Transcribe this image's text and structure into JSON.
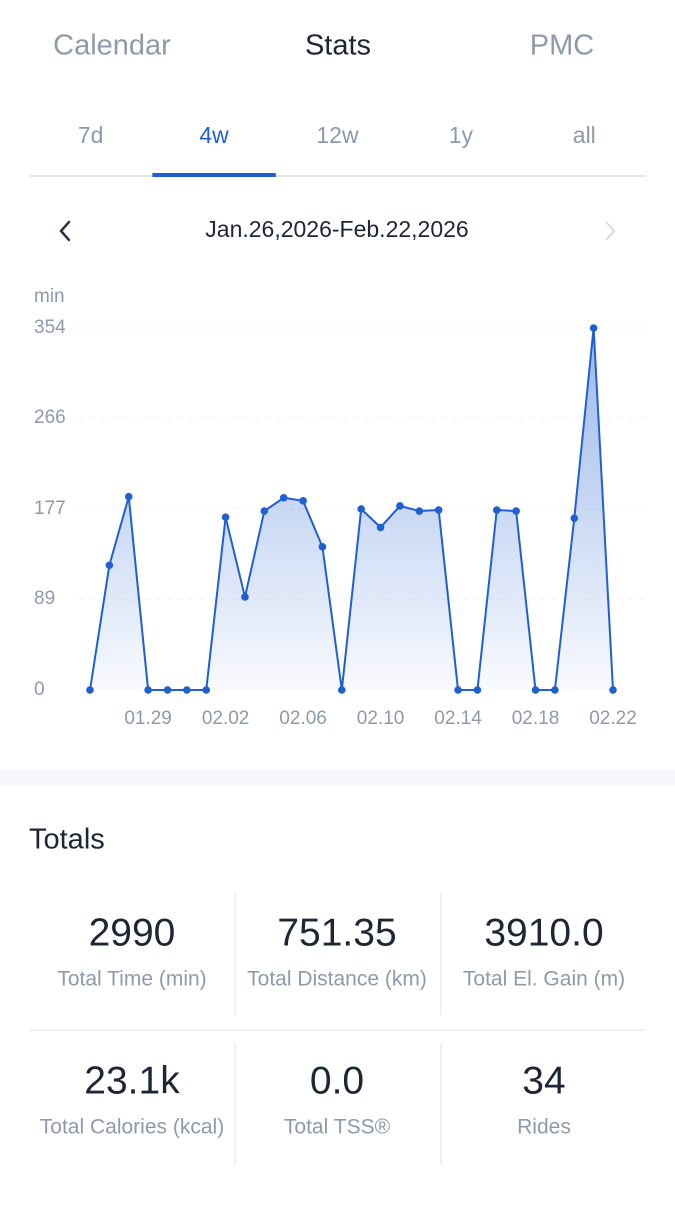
{
  "tabs": [
    "Calendar",
    "Stats",
    "PMC"
  ],
  "active_tab": 1,
  "range_tabs": [
    "7d",
    "4w",
    "12w",
    "1y",
    "all"
  ],
  "active_range": 1,
  "date_range": "Jan.26,2026-Feb.22,2026",
  "chart_data": {
    "type": "line",
    "y_label": "min",
    "categories": [
      null,
      null,
      null,
      "01.29",
      null,
      null,
      null,
      "02.02",
      null,
      null,
      null,
      "02.06",
      null,
      null,
      null,
      "02.10",
      null,
      null,
      null,
      "02.14",
      null,
      null,
      null,
      "02.18",
      null,
      null,
      null,
      "02.22"
    ],
    "values": [
      0,
      122,
      189,
      0,
      0,
      0,
      0,
      169,
      91,
      175,
      188,
      185,
      140,
      0,
      177,
      159,
      180,
      175,
      176,
      0,
      0,
      176,
      175,
      0,
      0,
      168,
      354,
      0
    ],
    "ylim": [
      0,
      354
    ],
    "yticks": [
      0,
      89,
      177,
      266,
      354
    ],
    "color": "#1f5fd1",
    "grid": true
  },
  "totals": {
    "title": "Totals",
    "items": [
      {
        "value": "2990",
        "label": "Total Time (min)"
      },
      {
        "value": "751.35",
        "label": "Total Distance (km)"
      },
      {
        "value": "3910.0",
        "label": "Total El. Gain (m)"
      },
      {
        "value": "23.1k",
        "label": "Total Calories (kcal)"
      },
      {
        "value": "0.0",
        "label": "Total TSS®"
      },
      {
        "value": "34",
        "label": "Rides"
      }
    ]
  }
}
